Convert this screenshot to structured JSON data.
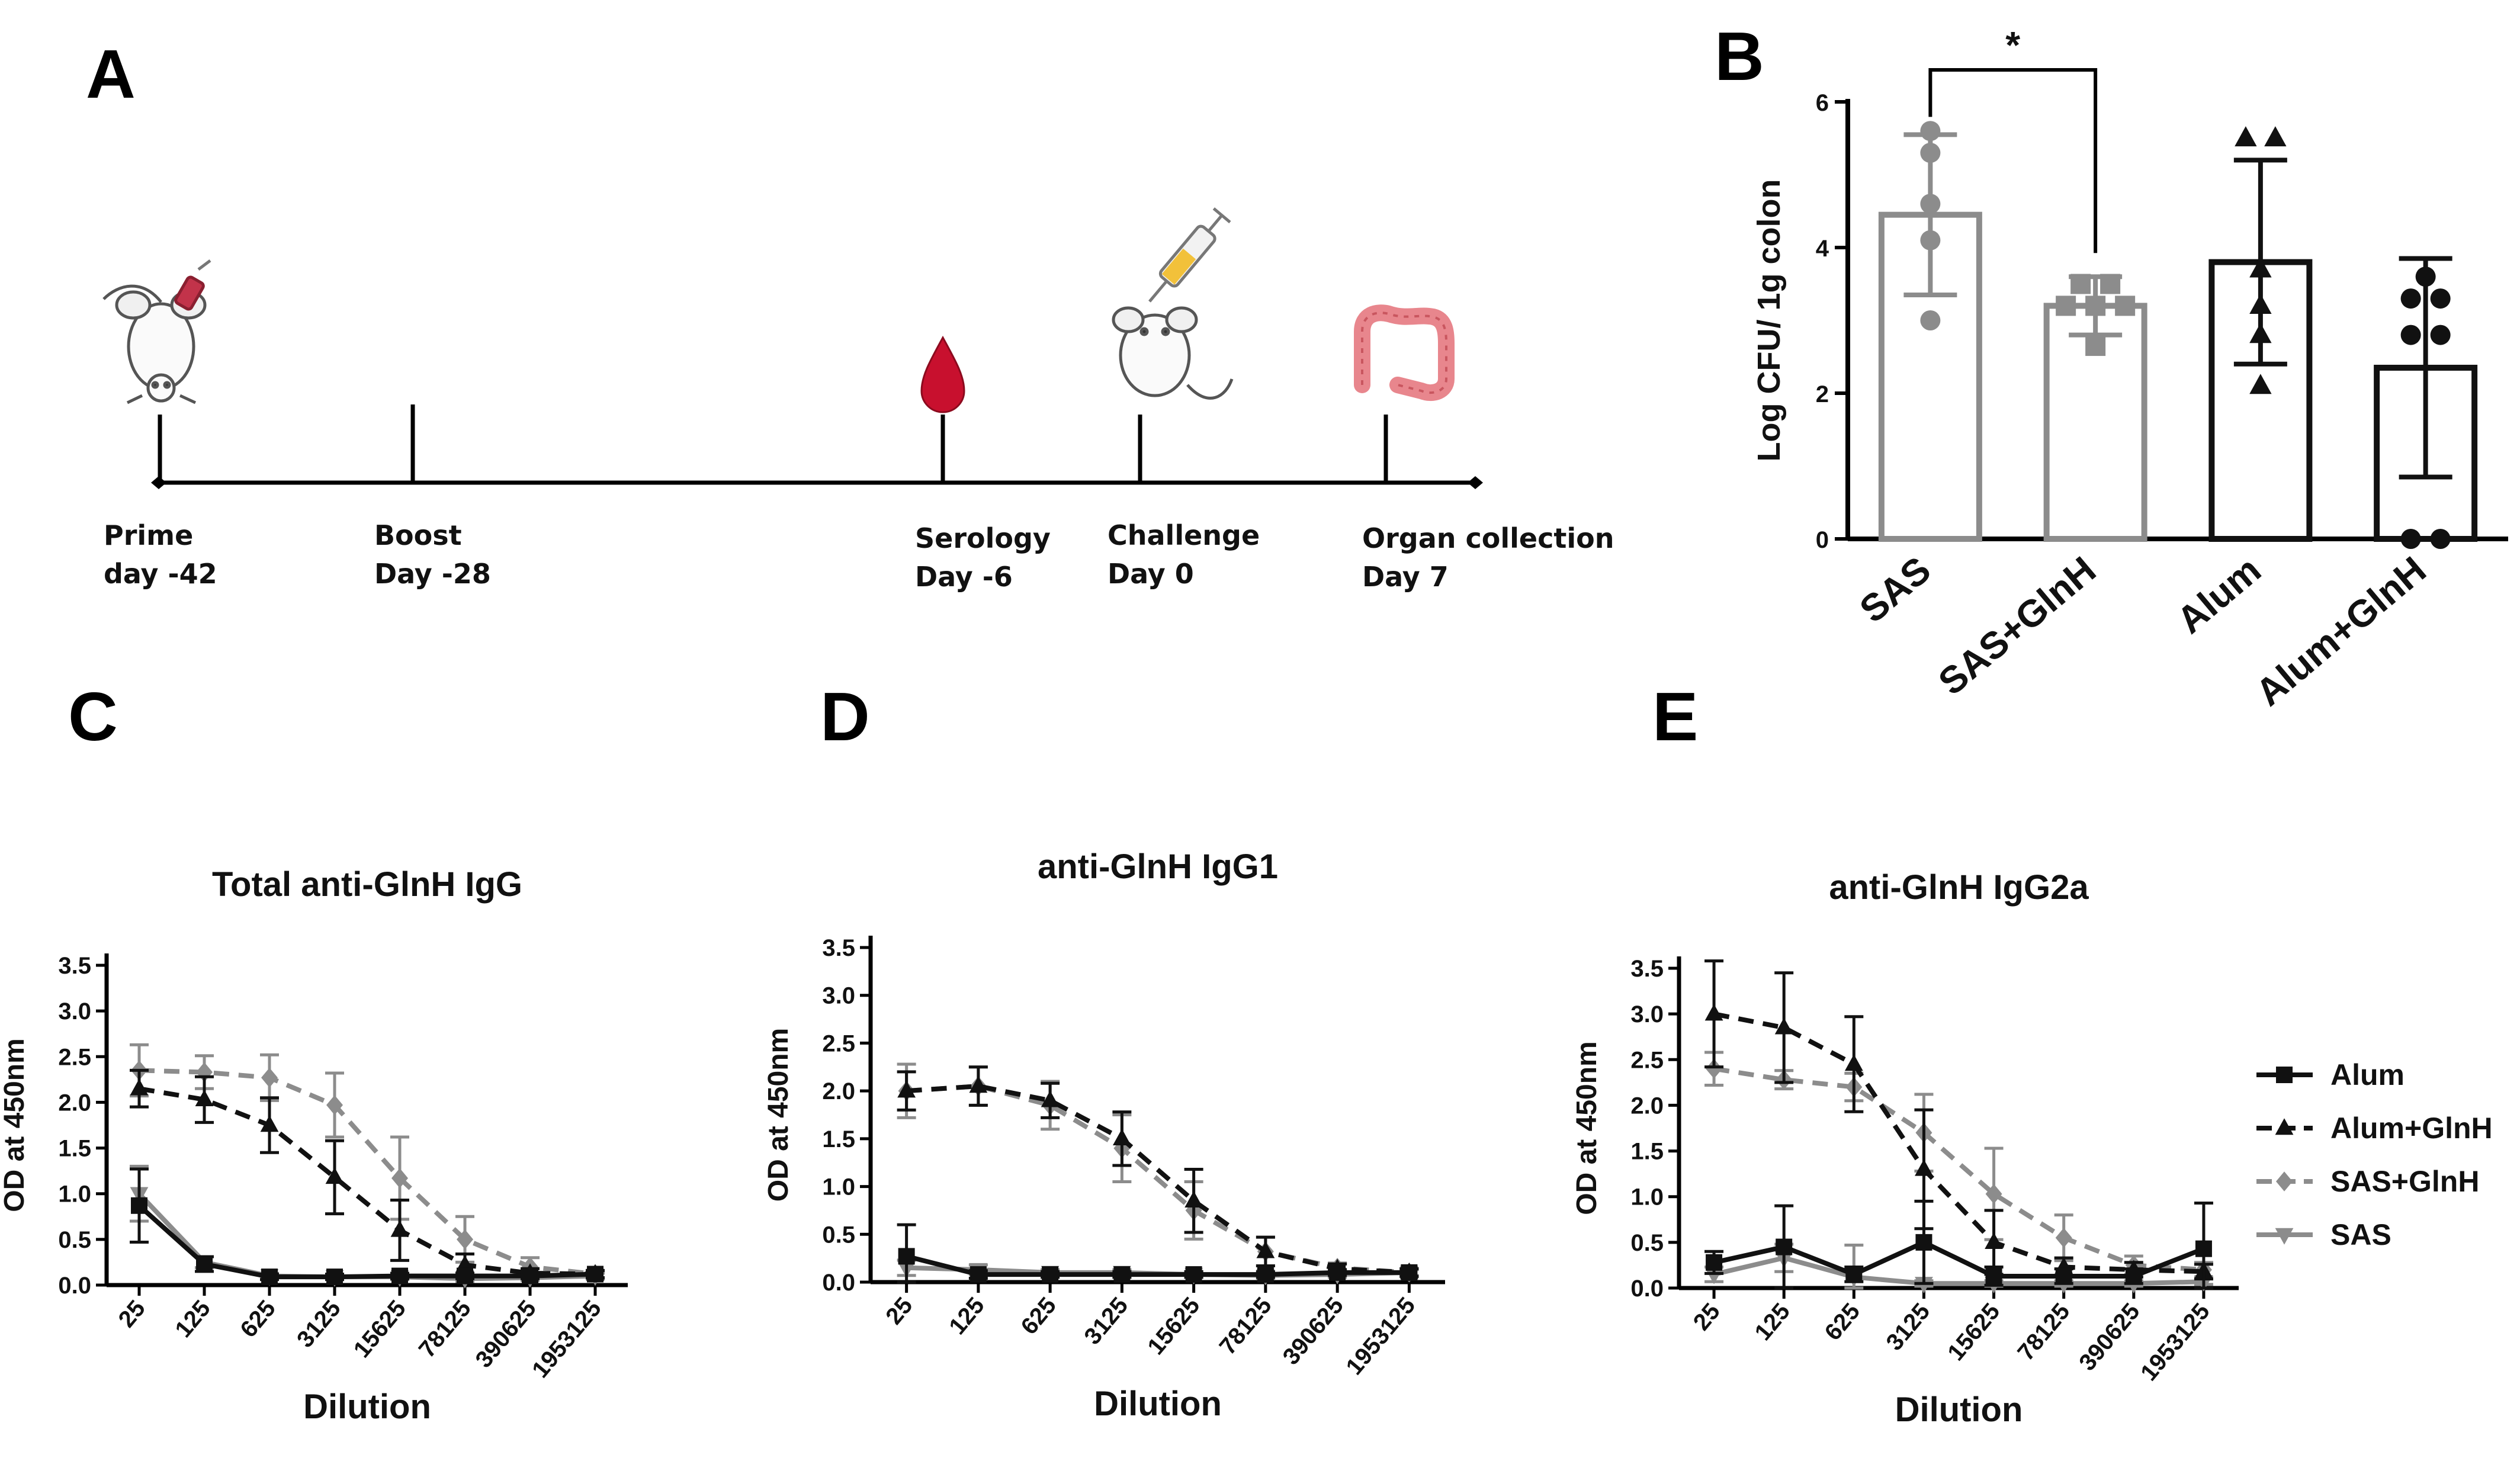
{
  "panels": {
    "a": "A",
    "b": "B",
    "c": "C",
    "d": "D",
    "e": "E"
  },
  "timeline": {
    "events": [
      {
        "label": "Prime",
        "day": "day -42"
      },
      {
        "label": "Boost",
        "day": "Day -28"
      },
      {
        "label": "Serology",
        "day": "Day -6"
      },
      {
        "label": "Challenge",
        "day": "Day 0"
      },
      {
        "label": "Organ collection",
        "day": "Day 7"
      }
    ],
    "icons": [
      "mouse-injection-icon",
      "blood-drop-icon",
      "syringe-mouse-icon",
      "colon-icon"
    ]
  },
  "colors": {
    "alum": "#111111",
    "sas": "#8c8c8c",
    "axis": "#000000"
  },
  "chart_data": [
    {
      "id": "B",
      "type": "bar",
      "title": "",
      "ylabel": "Log CFU/ 1g colon",
      "ylim": [
        0,
        6
      ],
      "yticks": [
        0,
        2,
        4,
        6
      ],
      "categories": [
        "SAS",
        "SAS+GlnH",
        "Alum",
        "Alum+GlnH"
      ],
      "bar_colors": [
        "#8c8c8c",
        "#8c8c8c",
        "#111111",
        "#111111"
      ],
      "markers": [
        "circle",
        "square",
        "triangle",
        "circle"
      ],
      "values": [
        4.45,
        3.2,
        3.8,
        2.35
      ],
      "sd": [
        1.1,
        0.4,
        1.4,
        1.5
      ],
      "points": [
        [
          5.6,
          5.3,
          4.6,
          4.1,
          3.0
        ],
        [
          3.5,
          3.5,
          3.2,
          3.2,
          3.2,
          2.65
        ],
        [
          5.5,
          5.5,
          3.7,
          3.2,
          2.8,
          2.1
        ],
        [
          3.6,
          3.3,
          3.3,
          2.8,
          2.8,
          0.0,
          0.0
        ]
      ],
      "significance": {
        "between": [
          0,
          1
        ],
        "label": "*"
      }
    },
    {
      "id": "C",
      "type": "line",
      "title": "Total anti-GlnH IgG",
      "xlabel": "Dilution",
      "ylabel": "OD at 450nm",
      "ylim": [
        0,
        3.5
      ],
      "yticks": [
        "0.0",
        "0.5",
        "1.0",
        "1.5",
        "2.0",
        "2.5",
        "3.0",
        "3.5"
      ],
      "categories": [
        "25",
        "125",
        "625",
        "3125",
        "15625",
        "78125",
        "390625",
        "1953125"
      ],
      "series": [
        {
          "name": "Alum",
          "style": "solid",
          "color": "#111111",
          "marker": "square",
          "values": [
            0.87,
            0.23,
            0.09,
            0.09,
            0.1,
            0.1,
            0.1,
            0.12
          ],
          "err": [
            0.4,
            0.08,
            0.03,
            0.03,
            0.03,
            0.03,
            0.03,
            0.04
          ]
        },
        {
          "name": "Alum+GlnH",
          "style": "dashed",
          "color": "#111111",
          "marker": "triangle",
          "values": [
            2.15,
            2.03,
            1.75,
            1.18,
            0.6,
            0.22,
            0.13,
            0.12
          ],
          "err": [
            0.2,
            0.25,
            0.3,
            0.4,
            0.33,
            0.12,
            0.05,
            0.04
          ]
        },
        {
          "name": "SAS+GlnH",
          "style": "dashed",
          "color": "#8c8c8c",
          "marker": "diamond",
          "values": [
            2.35,
            2.33,
            2.27,
            1.97,
            1.17,
            0.5,
            0.2,
            0.12
          ],
          "err": [
            0.28,
            0.18,
            0.25,
            0.35,
            0.45,
            0.25,
            0.1,
            0.04
          ]
        },
        {
          "name": "SAS",
          "style": "solid",
          "color": "#8c8c8c",
          "marker": "triangle-down",
          "values": [
            1.0,
            0.25,
            0.1,
            0.09,
            0.09,
            0.07,
            0.08,
            0.1
          ],
          "err": [
            0.3,
            0.06,
            0.03,
            0.03,
            0.03,
            0.03,
            0.03,
            0.03
          ]
        }
      ]
    },
    {
      "id": "D",
      "type": "line",
      "title": "anti-GlnH IgG1",
      "xlabel": "Dilution",
      "ylabel": "OD at 450nm",
      "ylim": [
        0,
        3.5
      ],
      "yticks": [
        "0.0",
        "0.5",
        "1.0",
        "1.5",
        "2.0",
        "2.5",
        "3.0",
        "3.5"
      ],
      "categories": [
        "25",
        "125",
        "625",
        "3125",
        "15625",
        "78125",
        "390625",
        "1953125"
      ],
      "series": [
        {
          "name": "Alum",
          "style": "solid",
          "color": "#111111",
          "marker": "square",
          "values": [
            0.27,
            0.08,
            0.08,
            0.08,
            0.08,
            0.08,
            0.1,
            0.1
          ],
          "err": [
            0.33,
            0.04,
            0.03,
            0.03,
            0.03,
            0.03,
            0.03,
            0.04
          ]
        },
        {
          "name": "Alum+GlnH",
          "style": "dashed",
          "color": "#111111",
          "marker": "triangle",
          "values": [
            2.0,
            2.05,
            1.9,
            1.5,
            0.85,
            0.32,
            0.14,
            0.1
          ],
          "err": [
            0.2,
            0.2,
            0.18,
            0.28,
            0.33,
            0.15,
            0.05,
            0.04
          ]
        },
        {
          "name": "SAS+GlnH",
          "style": "dashed",
          "color": "#8c8c8c",
          "marker": "diamond",
          "values": [
            2.0,
            2.05,
            1.85,
            1.4,
            0.75,
            0.32,
            0.15,
            0.1
          ],
          "err": [
            0.28,
            0.2,
            0.25,
            0.35,
            0.3,
            0.15,
            0.05,
            0.04
          ]
        },
        {
          "name": "SAS",
          "style": "solid",
          "color": "#8c8c8c",
          "marker": "triangle-down",
          "values": [
            0.15,
            0.13,
            0.1,
            0.1,
            0.08,
            0.07,
            0.08,
            0.1
          ],
          "err": [
            0.08,
            0.05,
            0.03,
            0.03,
            0.03,
            0.03,
            0.03,
            0.03
          ]
        }
      ]
    },
    {
      "id": "E",
      "type": "line",
      "title": "anti-GlnH IgG2a",
      "xlabel": "Dilution",
      "ylabel": "OD at 450nm",
      "ylim": [
        0,
        3.5
      ],
      "yticks": [
        "0.0",
        "0.5",
        "1.0",
        "1.5",
        "2.0",
        "2.5",
        "3.0",
        "3.5"
      ],
      "categories": [
        "25",
        "125",
        "625",
        "3125",
        "15625",
        "78125",
        "390625",
        "1953125"
      ],
      "series": [
        {
          "name": "Alum",
          "style": "solid",
          "color": "#111111",
          "marker": "square",
          "values": [
            0.28,
            0.45,
            0.15,
            0.5,
            0.13,
            0.13,
            0.13,
            0.43
          ],
          "err": [
            0.12,
            0.45,
            0.08,
            0.45,
            0.1,
            0.08,
            0.08,
            0.5
          ]
        },
        {
          "name": "Alum+GlnH",
          "style": "dashed",
          "color": "#111111",
          "marker": "triangle",
          "values": [
            3.0,
            2.85,
            2.45,
            1.3,
            0.5,
            0.23,
            0.2,
            0.18
          ],
          "err": [
            0.58,
            0.6,
            0.52,
            0.65,
            0.35,
            0.1,
            0.08,
            0.08
          ]
        },
        {
          "name": "SAS+GlnH",
          "style": "dashed",
          "color": "#8c8c8c",
          "marker": "diamond",
          "values": [
            2.4,
            2.28,
            2.2,
            1.7,
            1.03,
            0.55,
            0.25,
            0.2
          ],
          "err": [
            0.18,
            0.1,
            0.15,
            0.42,
            0.5,
            0.25,
            0.1,
            0.08
          ]
        },
        {
          "name": "SAS",
          "style": "solid",
          "color": "#8c8c8c",
          "marker": "triangle-down",
          "values": [
            0.15,
            0.33,
            0.12,
            0.05,
            0.05,
            0.05,
            0.05,
            0.07
          ],
          "err": [
            0.08,
            0.15,
            0.35,
            0.03,
            0.03,
            0.03,
            0.03,
            0.03
          ]
        }
      ]
    }
  ],
  "legend": {
    "items": [
      "Alum",
      "Alum+GlnH",
      "SAS+GlnH",
      "SAS"
    ]
  }
}
